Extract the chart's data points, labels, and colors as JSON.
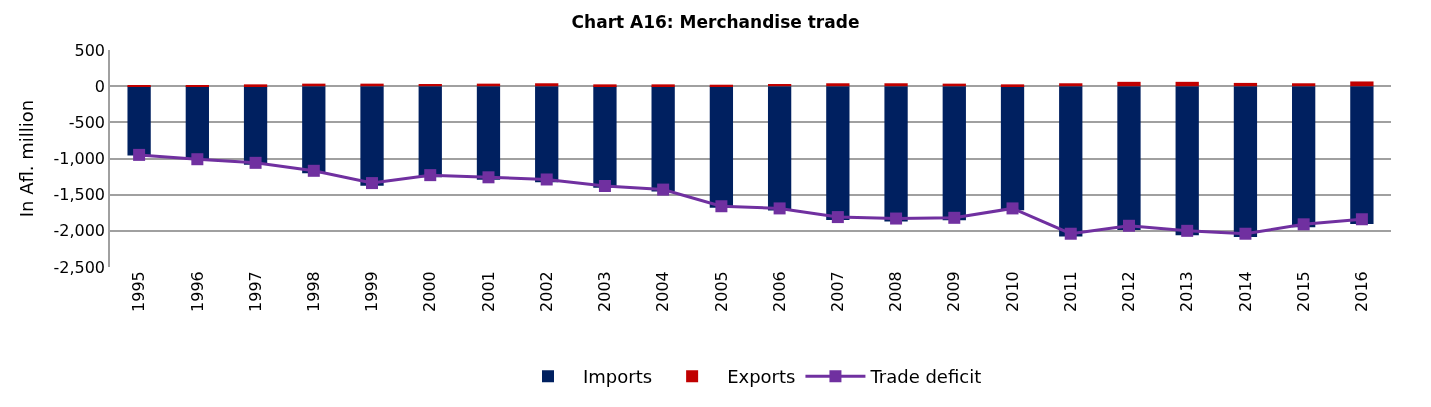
{
  "chart_data": {
    "type": "bar",
    "title": "Chart A16: Merchandise trade",
    "ylabel": "In Afl. million",
    "categories": [
      "1995",
      "1996",
      "1997",
      "1998",
      "1999",
      "2000",
      "2001",
      "2002",
      "2003",
      "2004",
      "2005",
      "2006",
      "2007",
      "2008",
      "2009",
      "2010",
      "2011",
      "2012",
      "2013",
      "2014",
      "2015",
      "2016"
    ],
    "stacked": true,
    "series": [
      {
        "name": "Imports",
        "color": "#002060",
        "values": [
          -960,
          -1020,
          -1085,
          -1205,
          -1375,
          -1260,
          -1295,
          -1330,
          -1405,
          -1455,
          -1680,
          -1720,
          -1850,
          -1870,
          -1855,
          -1715,
          -2080,
          -1990,
          -2060,
          -2085,
          -1950,
          -1905
        ]
      },
      {
        "name": "Exports",
        "color": "#c00000",
        "values": [
          10,
          10,
          25,
          35,
          35,
          30,
          35,
          40,
          25,
          25,
          20,
          30,
          40,
          40,
          35,
          25,
          40,
          60,
          60,
          45,
          40,
          65
        ]
      },
      {
        "name": "Trade deficit",
        "type": "line",
        "color": "#7030a0",
        "marker": "square",
        "line_style": "solid",
        "values": [
          -950,
          -1010,
          -1060,
          -1170,
          -1340,
          -1230,
          -1260,
          -1290,
          -1380,
          -1430,
          -1660,
          -1690,
          -1810,
          -1830,
          -1820,
          -1690,
          -2040,
          -1930,
          -2000,
          -2040,
          -1910,
          -1840
        ]
      }
    ],
    "ylim": [
      -2500,
      500
    ],
    "yticks": [
      {
        "value": 500,
        "label": "500"
      },
      {
        "value": 0,
        "label": "0"
      },
      {
        "value": -500,
        "label": "-500"
      },
      {
        "value": -1000,
        "label": "-1,000"
      },
      {
        "value": -1500,
        "label": "-1,500"
      },
      {
        "value": -2000,
        "label": "-2,000"
      },
      {
        "value": -2500,
        "label": "-2,500"
      }
    ],
    "grid": "y",
    "legend": "bottom"
  }
}
